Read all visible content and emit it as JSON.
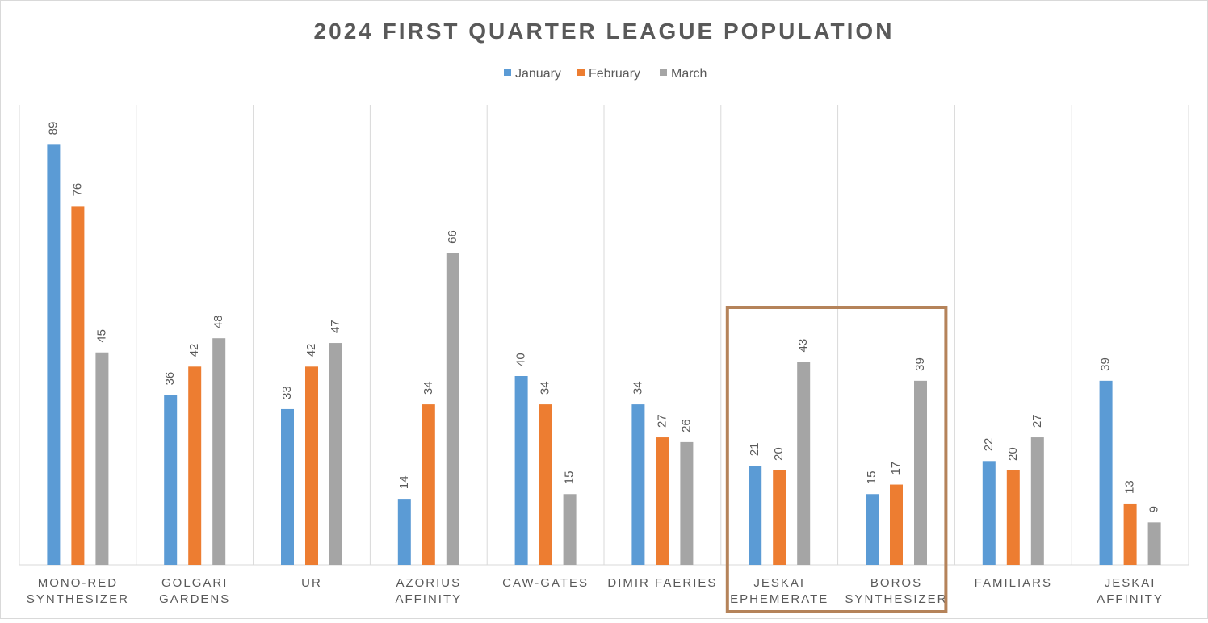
{
  "chart_data": {
    "type": "bar",
    "title": "2024 FIRST QUARTER LEAGUE POPULATION",
    "xlabel": "",
    "ylabel": "",
    "ylim": [
      0,
      100
    ],
    "grid": "vertical category separators",
    "legend_position": "top",
    "categories": [
      [
        "MONO-RED",
        "SYNTHESIZER"
      ],
      [
        "GOLGARI",
        "GARDENS"
      ],
      [
        "UR"
      ],
      [
        "AZORIUS",
        "AFFINITY"
      ],
      [
        "CAW-GATES"
      ],
      [
        "DIMIR FAERIES"
      ],
      [
        "JESKAI",
        "EPHEMERATE"
      ],
      [
        "BOROS",
        "SYNTHESIZER"
      ],
      [
        "FAMILIARS"
      ],
      [
        "JESKAI",
        "AFFINITY"
      ]
    ],
    "series": [
      {
        "name": "January",
        "color": "#5B9BD5",
        "values": [
          89,
          36,
          33,
          14,
          40,
          34,
          21,
          15,
          22,
          39
        ]
      },
      {
        "name": "February",
        "color": "#ED7D31",
        "values": [
          76,
          42,
          42,
          34,
          34,
          27,
          20,
          17,
          20,
          13
        ]
      },
      {
        "name": "March",
        "color": "#A5A5A5",
        "values": [
          45,
          48,
          47,
          66,
          15,
          26,
          43,
          39,
          27,
          9
        ]
      }
    ],
    "highlight": {
      "categories": [
        "JESKAI EPHEMERATE",
        "BOROS SYNTHESIZER"
      ],
      "color": "#B5835A"
    }
  }
}
